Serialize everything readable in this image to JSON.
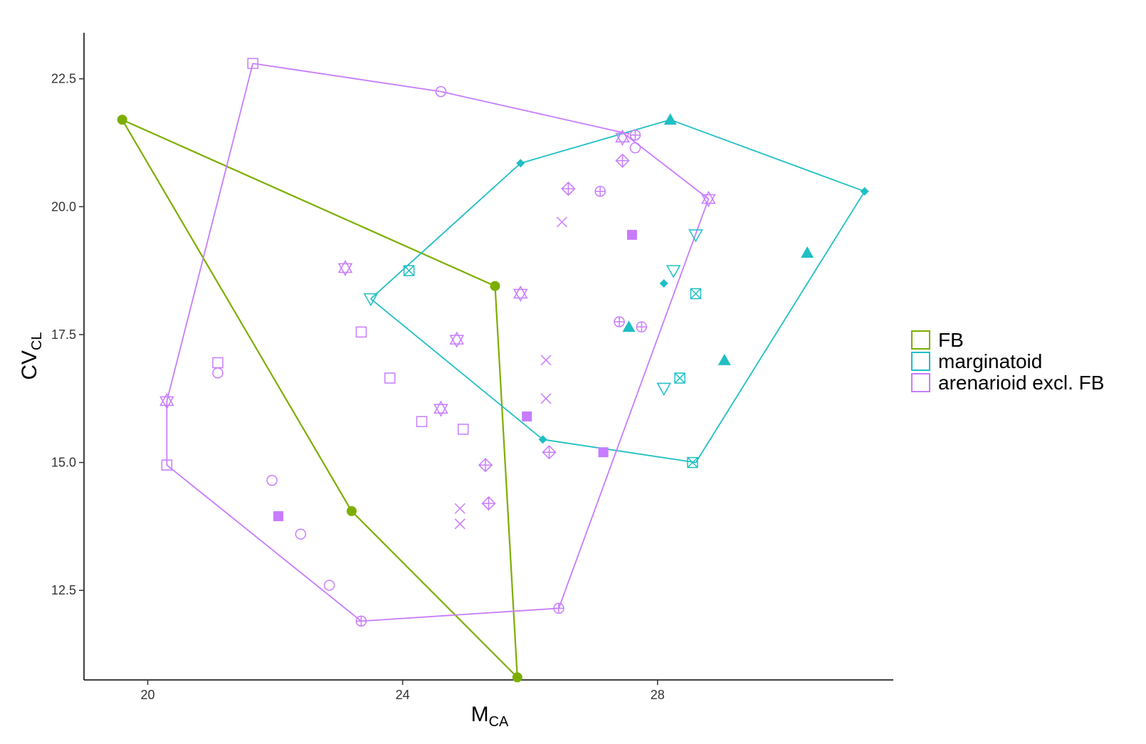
{
  "chart_data": {
    "type": "scatter",
    "title": "",
    "xlabel": {
      "main": "M",
      "sub": "CA"
    },
    "ylabel": {
      "main": "CV",
      "sub": "CL"
    },
    "xlim": [
      19.0,
      31.7
    ],
    "ylim": [
      10.75,
      23.4
    ],
    "x_ticks": [
      {
        "value": 20,
        "label": "20"
      },
      {
        "value": 24,
        "label": "24"
      },
      {
        "value": 28,
        "label": "28"
      }
    ],
    "y_ticks": [
      {
        "value": 12.5,
        "label": "12.5"
      },
      {
        "value": 15.0,
        "label": "15.0"
      },
      {
        "value": 17.5,
        "label": "17.5"
      },
      {
        "value": 20.0,
        "label": "20.0"
      },
      {
        "value": 22.5,
        "label": "22.5"
      }
    ],
    "grid": false,
    "legend_placement": "right",
    "series": [
      {
        "name": "FB",
        "color": "#7cae00",
        "hull": [
          [
            19.6,
            21.7
          ],
          [
            25.45,
            18.45
          ],
          [
            25.8,
            10.8
          ],
          [
            23.2,
            14.05
          ],
          [
            19.6,
            21.7
          ]
        ],
        "points": [
          {
            "x": 19.6,
            "y": 21.7,
            "shape": "filled-circle"
          },
          {
            "x": 25.45,
            "y": 18.45,
            "shape": "filled-circle"
          },
          {
            "x": 23.2,
            "y": 14.05,
            "shape": "filled-circle"
          },
          {
            "x": 25.8,
            "y": 10.8,
            "shape": "filled-circle"
          }
        ]
      },
      {
        "name": "marginatoid",
        "color": "#1fbfc4",
        "hull": [
          [
            23.5,
            18.2
          ],
          [
            25.85,
            20.85
          ],
          [
            28.2,
            21.7
          ],
          [
            31.25,
            20.3
          ],
          [
            28.6,
            15.0
          ],
          [
            26.2,
            15.45
          ],
          [
            23.5,
            18.2
          ]
        ],
        "points": [
          {
            "x": 25.85,
            "y": 20.85,
            "shape": "filled-diamond"
          },
          {
            "x": 31.25,
            "y": 20.3,
            "shape": "filled-diamond"
          },
          {
            "x": 28.1,
            "y": 18.5,
            "shape": "filled-diamond"
          },
          {
            "x": 26.2,
            "y": 15.45,
            "shape": "filled-diamond"
          },
          {
            "x": 28.2,
            "y": 21.7,
            "shape": "filled-triangle"
          },
          {
            "x": 30.35,
            "y": 19.1,
            "shape": "filled-triangle"
          },
          {
            "x": 27.55,
            "y": 17.65,
            "shape": "filled-triangle"
          },
          {
            "x": 29.05,
            "y": 17.0,
            "shape": "filled-triangle"
          },
          {
            "x": 23.5,
            "y": 18.2,
            "shape": "open-triangle-down"
          },
          {
            "x": 28.6,
            "y": 19.45,
            "shape": "open-triangle-down"
          },
          {
            "x": 28.25,
            "y": 18.75,
            "shape": "open-triangle-down"
          },
          {
            "x": 28.1,
            "y": 16.45,
            "shape": "open-triangle-down"
          },
          {
            "x": 24.1,
            "y": 18.75,
            "shape": "square-cross"
          },
          {
            "x": 28.6,
            "y": 18.3,
            "shape": "square-cross"
          },
          {
            "x": 28.35,
            "y": 16.65,
            "shape": "square-cross"
          },
          {
            "x": 28.55,
            "y": 15.0,
            "shape": "square-cross"
          }
        ]
      },
      {
        "name": "arenarioid excl. FB",
        "color": "#c77cff",
        "hull": [
          [
            21.65,
            22.8
          ],
          [
            24.6,
            22.25
          ],
          [
            27.45,
            21.45
          ],
          [
            28.8,
            20.15
          ],
          [
            26.45,
            12.15
          ],
          [
            23.35,
            11.9
          ],
          [
            20.3,
            14.95
          ],
          [
            20.3,
            16.2
          ],
          [
            21.65,
            22.8
          ]
        ],
        "points": [
          {
            "x": 21.65,
            "y": 22.8,
            "shape": "open-square"
          },
          {
            "x": 21.1,
            "y": 16.95,
            "shape": "open-square"
          },
          {
            "x": 20.3,
            "y": 14.95,
            "shape": "open-square"
          },
          {
            "x": 23.35,
            "y": 17.55,
            "shape": "open-square"
          },
          {
            "x": 23.8,
            "y": 16.65,
            "shape": "open-square"
          },
          {
            "x": 24.3,
            "y": 15.8,
            "shape": "open-square"
          },
          {
            "x": 24.95,
            "y": 15.65,
            "shape": "open-square"
          },
          {
            "x": 24.6,
            "y": 22.25,
            "shape": "open-circle"
          },
          {
            "x": 27.65,
            "y": 21.15,
            "shape": "open-circle"
          },
          {
            "x": 21.1,
            "y": 16.75,
            "shape": "open-circle"
          },
          {
            "x": 21.95,
            "y": 14.65,
            "shape": "open-circle"
          },
          {
            "x": 22.4,
            "y": 13.6,
            "shape": "open-circle"
          },
          {
            "x": 22.85,
            "y": 12.6,
            "shape": "open-circle"
          },
          {
            "x": 27.65,
            "y": 21.4,
            "shape": "circle-plus"
          },
          {
            "x": 27.1,
            "y": 20.3,
            "shape": "circle-plus"
          },
          {
            "x": 27.4,
            "y": 17.75,
            "shape": "circle-plus"
          },
          {
            "x": 27.75,
            "y": 17.65,
            "shape": "circle-plus"
          },
          {
            "x": 26.45,
            "y": 12.15,
            "shape": "circle-plus"
          },
          {
            "x": 23.35,
            "y": 11.9,
            "shape": "circle-plus"
          },
          {
            "x": 27.45,
            "y": 21.35,
            "shape": "star-of-david"
          },
          {
            "x": 28.8,
            "y": 20.15,
            "shape": "star-of-david"
          },
          {
            "x": 23.1,
            "y": 18.8,
            "shape": "star-of-david"
          },
          {
            "x": 25.85,
            "y": 18.3,
            "shape": "star-of-david"
          },
          {
            "x": 24.85,
            "y": 17.4,
            "shape": "star-of-david"
          },
          {
            "x": 24.6,
            "y": 16.05,
            "shape": "star-of-david"
          },
          {
            "x": 20.3,
            "y": 16.2,
            "shape": "star-of-david"
          },
          {
            "x": 27.45,
            "y": 20.9,
            "shape": "diamond-plus"
          },
          {
            "x": 26.6,
            "y": 20.35,
            "shape": "diamond-plus"
          },
          {
            "x": 25.3,
            "y": 14.95,
            "shape": "diamond-plus"
          },
          {
            "x": 26.3,
            "y": 15.2,
            "shape": "diamond-plus"
          },
          {
            "x": 25.35,
            "y": 14.2,
            "shape": "diamond-plus"
          },
          {
            "x": 26.5,
            "y": 19.7,
            "shape": "cross"
          },
          {
            "x": 26.25,
            "y": 17.0,
            "shape": "cross"
          },
          {
            "x": 26.25,
            "y": 16.25,
            "shape": "cross"
          },
          {
            "x": 24.9,
            "y": 14.1,
            "shape": "cross"
          },
          {
            "x": 24.9,
            "y": 13.8,
            "shape": "cross"
          },
          {
            "x": 27.6,
            "y": 19.45,
            "shape": "filled-square"
          },
          {
            "x": 25.95,
            "y": 15.9,
            "shape": "filled-square"
          },
          {
            "x": 27.15,
            "y": 15.2,
            "shape": "filled-square"
          },
          {
            "x": 22.05,
            "y": 13.95,
            "shape": "filled-square"
          }
        ]
      }
    ]
  }
}
